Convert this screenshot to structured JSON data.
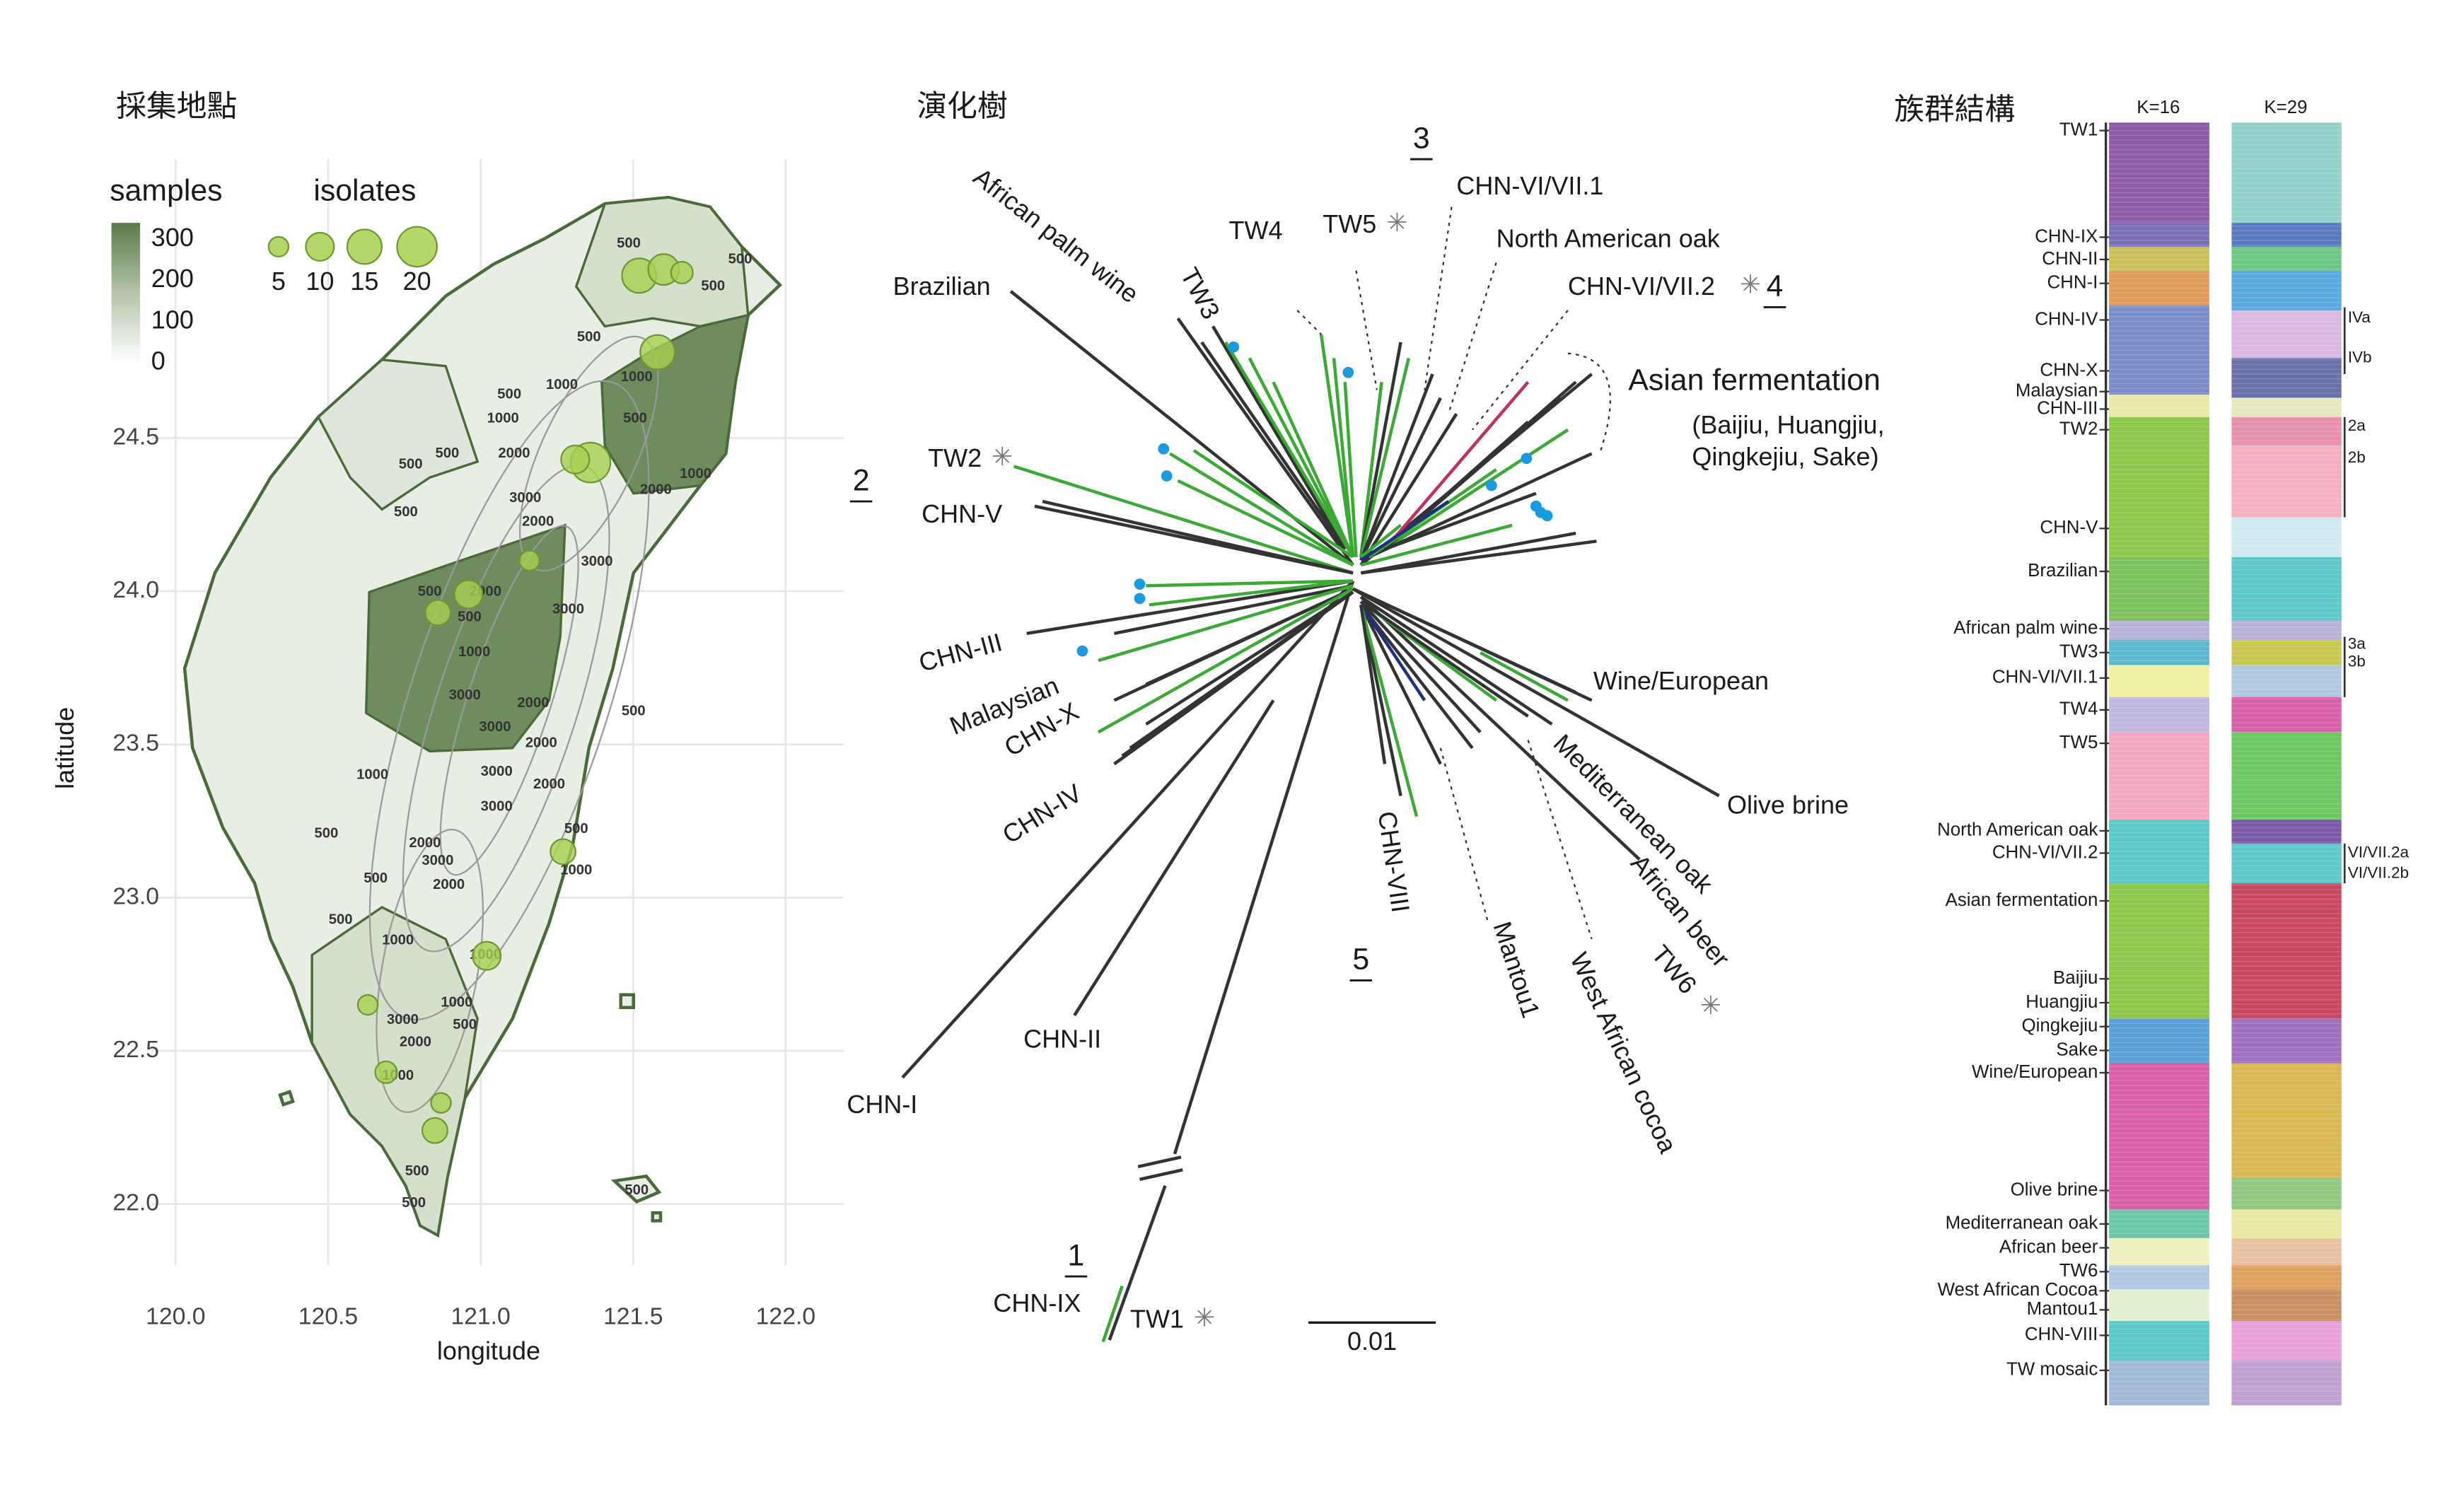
{
  "map": {
    "title": "採集地點",
    "xlabel": "longitude",
    "ylabel": "latitude",
    "xlim": [
      119.92,
      122.19
    ],
    "ylim": [
      21.8,
      25.41
    ],
    "xticks": [
      {
        "value": 120,
        "label": "120.0"
      },
      {
        "value": 120.5,
        "label": "120.5"
      },
      {
        "value": 121,
        "label": "121.0"
      },
      {
        "value": 121.5,
        "label": "121.5"
      },
      {
        "value": 122,
        "label": "122.0"
      }
    ],
    "yticks": [
      {
        "value": 22,
        "label": "22.0"
      },
      {
        "value": 22.5,
        "label": "22.5"
      },
      {
        "value": 23,
        "label": "23.0"
      },
      {
        "value": 23.5,
        "label": "23.5"
      },
      {
        "value": 24,
        "label": "24.0"
      },
      {
        "value": 24.5,
        "label": "24.5"
      }
    ],
    "grid": true,
    "samples_legend": {
      "title": "samples",
      "lim": [
        0,
        340
      ],
      "ticks": [
        300,
        200,
        100,
        0
      ]
    },
    "isolates_legend": {
      "title": "isolates",
      "values": [
        5,
        10,
        15,
        20
      ]
    },
    "points": {
      "lon": [
        121.52,
        121.6,
        121.66,
        121.58,
        121.36,
        121.31,
        121.16,
        120.96,
        120.86,
        121.27,
        121.02,
        120.63,
        120.69,
        120.87,
        120.85
      ],
      "lat": [
        25.03,
        25.05,
        25.04,
        24.78,
        24.42,
        24.43,
        24.1,
        23.99,
        23.93,
        23.15,
        22.81,
        22.65,
        22.43,
        22.33,
        22.24
      ],
      "isolates": [
        15,
        12,
        6,
        15,
        20,
        10,
        5,
        10,
        8,
        8,
        10,
        5,
        6,
        5,
        8
      ]
    },
    "contour_labels": [
      "500",
      "500",
      "500",
      "500",
      "1000",
      "1000",
      "500",
      "1000",
      "500",
      "2000",
      "500",
      "500",
      "1000",
      "2000",
      "3000",
      "2000",
      "500",
      "3000",
      "500",
      "2000",
      "3000",
      "500",
      "1000",
      "3000",
      "2000",
      "500",
      "3000",
      "2000",
      "1000",
      "3000",
      "2000",
      "3000",
      "500",
      "2000",
      "3000",
      "500",
      "500",
      "2000",
      "1000",
      "500",
      "1000",
      "1000",
      "1000",
      "500",
      "3000",
      "2000",
      "1000",
      "500",
      "500",
      "500"
    ]
  },
  "tree": {
    "title": "演化樹",
    "labels": [
      "African palm wine",
      "Brazilian",
      "TW3",
      "TW4",
      "TW5",
      "CHN-VI/VII.1",
      "North American oak",
      "CHN-VI/VII.2",
      "Asian fermentation",
      "(Baijiu, Huangjiu,",
      "Qingkejiu, Sake)",
      "TW2",
      "CHN-V",
      "CHN-III",
      "Malaysian",
      "CHN-X",
      "CHN-IV",
      "Wine/European",
      "Olive brine",
      "Mediterranean oak",
      "African beer",
      "TW6",
      "West African cocoa",
      "Mantou1",
      "CHN-VIII",
      "CHN-II",
      "CHN-I",
      "CHN-IX",
      "TW1"
    ],
    "clades": [
      "1",
      "2",
      "3",
      "4",
      "5"
    ],
    "asterisk": "✳",
    "scale_bar": "0.01"
  },
  "structure": {
    "title": "族群結構",
    "k_labels": [
      "K=16",
      "K=29"
    ],
    "groups": [
      "TW1",
      "CHN-IX",
      "CHN-II",
      "CHN-I",
      "CHN-IV",
      "CHN-X",
      "Malaysian",
      "CHN-III",
      "TW2",
      "CHN-V",
      "Brazilian",
      "African palm wine",
      "TW3",
      "CHN-VI/VII.1",
      "TW4",
      "TW5",
      "North American oak",
      "CHN-VI/VII.2",
      "Asian fermentation",
      "Baijiu",
      "Huangjiu",
      "Qingkejiu",
      "Sake",
      "Wine/European",
      "Olive brine",
      "Mediterranean oak",
      "African beer",
      "TW6",
      "West African Cocoa",
      "Mantou1",
      "CHN-VIII",
      "TW mosaic"
    ],
    "subgroups": [
      "IVa",
      "IVb",
      "2a",
      "2b",
      "3a",
      "3b",
      "VI/VII.2a",
      "VI/VII.2b"
    ]
  }
}
